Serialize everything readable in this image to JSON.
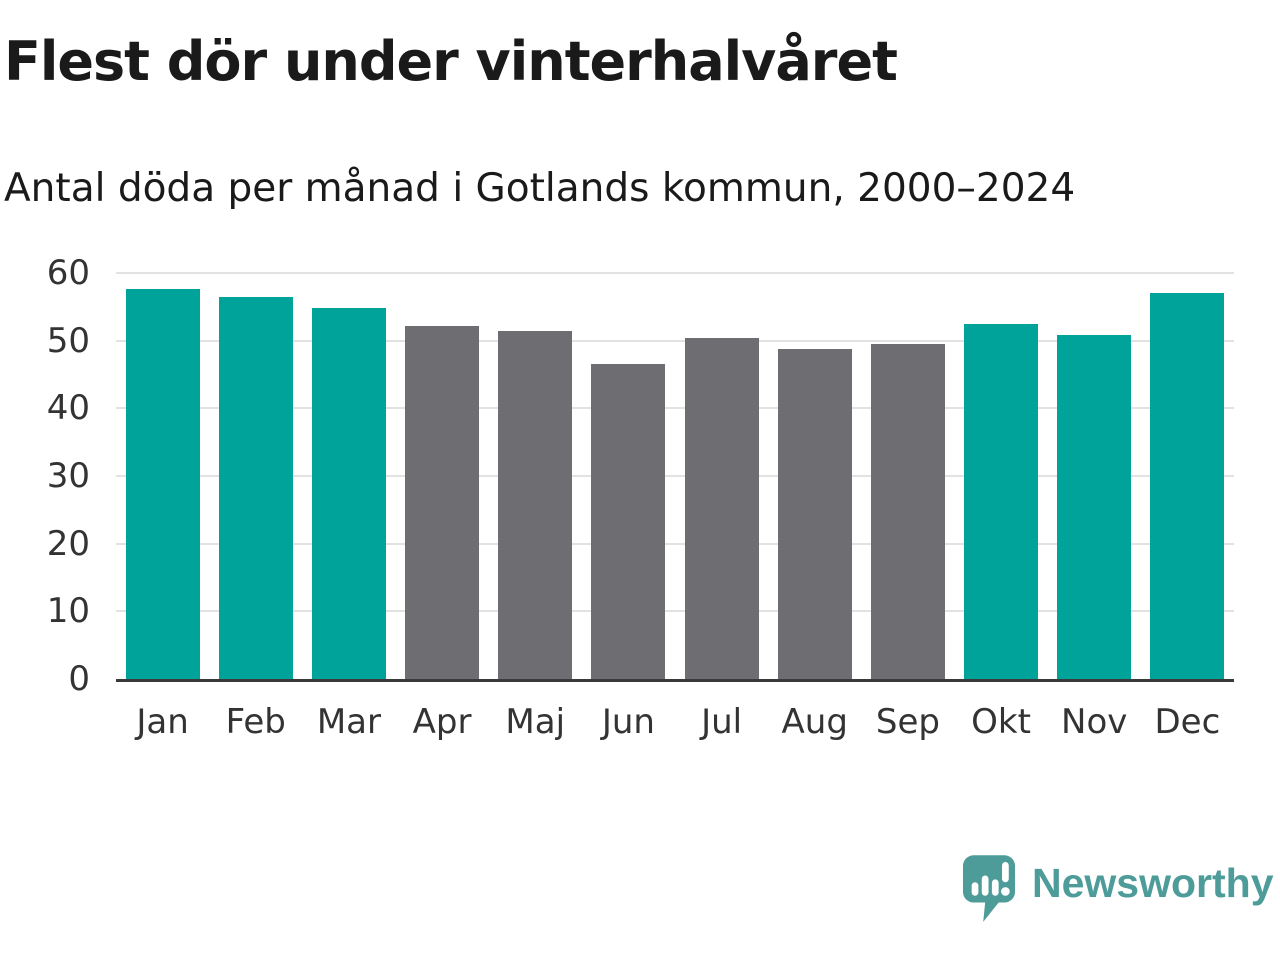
{
  "chart_data": {
    "type": "bar",
    "title": "Flest dör under vinterhalvåret",
    "subtitle": "Antal döda per månad i Gotlands kommun, 2000–2024",
    "categories": [
      "Jan",
      "Feb",
      "Mar",
      "Apr",
      "Maj",
      "Jun",
      "Jul",
      "Aug",
      "Sep",
      "Okt",
      "Nov",
      "Dec"
    ],
    "values": [
      57.7,
      56.5,
      54.8,
      52.1,
      51.5,
      46.5,
      50.4,
      48.8,
      49.5,
      52.5,
      50.9,
      57.1
    ],
    "bar_colors": [
      "#00a39a",
      "#00a39a",
      "#00a39a",
      "#6e6e72",
      "#6e6e72",
      "#6e6e72",
      "#6e6e72",
      "#6e6e72",
      "#6e6e72",
      "#00a39a",
      "#00a39a",
      "#00a39a"
    ],
    "highlight_color": "#00a39a",
    "muted_color": "#6e6e72",
    "xlabel": "",
    "ylabel": "",
    "ylim": [
      0,
      60
    ],
    "yticks": [
      0,
      10,
      20,
      30,
      40,
      50,
      60
    ],
    "grid": true,
    "legend": "none"
  },
  "branding": {
    "logo_text": "Newsworthy",
    "logo_color": "#4d9c99"
  }
}
